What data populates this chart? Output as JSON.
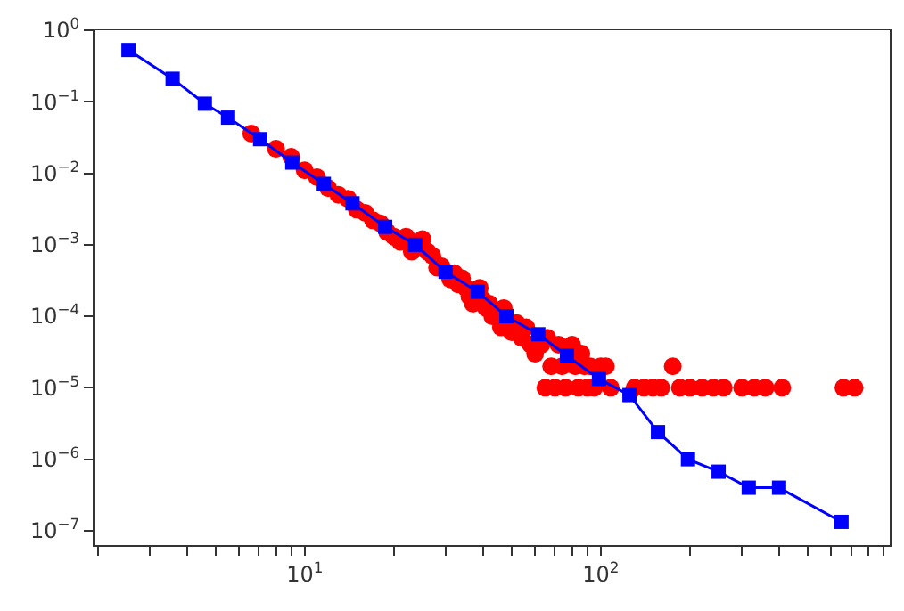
{
  "chart_data": {
    "type": "scatter",
    "log": "xy",
    "xlim": [
      1.95,
      946
    ],
    "ylim": [
      6.3e-08,
      1
    ],
    "xticks": [
      {
        "value": 2,
        "label": null
      },
      {
        "value": 3,
        "label": null
      },
      {
        "value": 4,
        "label": null
      },
      {
        "value": 5,
        "label": null
      },
      {
        "value": 6,
        "label": null
      },
      {
        "value": 7,
        "label": null
      },
      {
        "value": 8,
        "label": null
      },
      {
        "value": 9,
        "label": null
      },
      {
        "value": 10,
        "label": "10$^{1}$"
      },
      {
        "value": 20,
        "label": null
      },
      {
        "value": 30,
        "label": null
      },
      {
        "value": 40,
        "label": null
      },
      {
        "value": 50,
        "label": null
      },
      {
        "value": 60,
        "label": null
      },
      {
        "value": 70,
        "label": null
      },
      {
        "value": 80,
        "label": null
      },
      {
        "value": 90,
        "label": null
      },
      {
        "value": 100,
        "label": "10$^{2}$"
      },
      {
        "value": 200,
        "label": null
      },
      {
        "value": 300,
        "label": null
      },
      {
        "value": 400,
        "label": null
      },
      {
        "value": 500,
        "label": null
      },
      {
        "value": 600,
        "label": null
      },
      {
        "value": 700,
        "label": null
      },
      {
        "value": 800,
        "label": null
      },
      {
        "value": 900,
        "label": null
      }
    ],
    "yticks": [
      {
        "value": 1e-07,
        "label": "10$^{−7}$"
      },
      {
        "value": 1e-06,
        "label": "10$^{−6}$"
      },
      {
        "value": 1e-05,
        "label": "10$^{−5}$"
      },
      {
        "value": 0.0001,
        "label": "10$^{−4}$"
      },
      {
        "value": 0.001,
        "label": "10$^{−3}$"
      },
      {
        "value": 0.01,
        "label": "10$^{−2}$"
      },
      {
        "value": 0.1,
        "label": "10$^{−1}$"
      },
      {
        "value": 1,
        "label": "10$^{0}$"
      }
    ],
    "series": [
      {
        "marker": "circle",
        "color": "#ff0000",
        "x": [
          6.6,
          8,
          9,
          10,
          11,
          12,
          13,
          14,
          15,
          16,
          17,
          18,
          19,
          20,
          21,
          22,
          23,
          25,
          26,
          27,
          28,
          29,
          31,
          32,
          33,
          34,
          35,
          36,
          37,
          39,
          40,
          41,
          42,
          43,
          46,
          47,
          50,
          52,
          54,
          56,
          58,
          60,
          63,
          65,
          66,
          68,
          70,
          72,
          74,
          76,
          80,
          82,
          84,
          86,
          88,
          90,
          92,
          95,
          100,
          104,
          108,
          130,
          140,
          150,
          160,
          175,
          185,
          200,
          220,
          240,
          260,
          300,
          330,
          360,
          410,
          660,
          720
        ],
        "values": [
          0.036,
          0.022,
          0.017,
          0.011,
          0.0088,
          0.0062,
          0.005,
          0.0044,
          0.0031,
          0.0028,
          0.0022,
          0.002,
          0.0015,
          0.0013,
          0.0011,
          0.0013,
          0.0008,
          0.0012,
          0.0008,
          0.0007,
          0.00048,
          0.0005,
          0.00033,
          0.0004,
          0.00028,
          0.00034,
          0.00025,
          0.00019,
          0.00015,
          0.00025,
          0.00017,
          0.00013,
          0.00015,
          0.0001,
          7e-05,
          0.00013,
          6e-05,
          8e-05,
          5e-05,
          7e-05,
          4e-05,
          3e-05,
          4e-05,
          1e-05,
          5e-05,
          2e-05,
          1e-05,
          4e-05,
          2e-05,
          1e-05,
          4e-05,
          2e-05,
          1e-05,
          3e-05,
          2e-05,
          1e-05,
          2e-05,
          1e-05,
          2e-05,
          2e-05,
          1e-05,
          1e-05,
          1e-05,
          1e-05,
          1e-05,
          2e-05,
          1e-05,
          1e-05,
          1e-05,
          1e-05,
          1e-05,
          1e-05,
          1e-05,
          1e-05,
          1e-05,
          1e-05,
          1e-05
        ]
      },
      {
        "type": "line",
        "marker": "square",
        "line_style": "solid",
        "color": "#0000ff",
        "x": [
          2.54,
          3.58,
          4.6,
          5.51,
          7.07,
          9.08,
          11.6,
          14.5,
          18.7,
          23.6,
          29.9,
          38.4,
          48,
          61.5,
          76.9,
          98.6,
          125,
          156,
          197,
          250,
          316,
          400,
          650
        ],
        "values": [
          0.53,
          0.21,
          0.094,
          0.06,
          0.03,
          0.0141,
          0.0071,
          0.0038,
          0.00178,
          0.001,
          0.00042,
          0.00022,
          0.0001,
          5.6e-05,
          2.8e-05,
          1.33e-05,
          7.9e-06,
          2.4e-06,
          1e-06,
          6.7e-07,
          4e-07,
          4e-07,
          1.33e-07
        ]
      }
    ]
  }
}
